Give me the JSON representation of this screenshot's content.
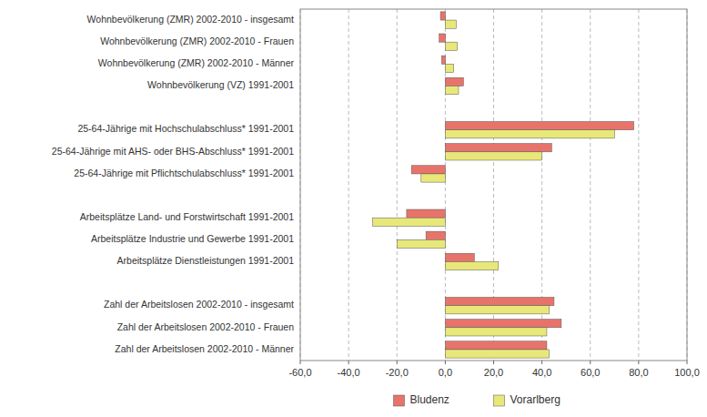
{
  "chart_data": {
    "type": "bar",
    "orientation": "horizontal",
    "categories": [
      "Wohnbevölkerung (ZMR) 2002-2010 - insgesamt",
      "Wohnbevölkerung (ZMR) 2002-2010 - Frauen",
      "Wohnbevölkerung (ZMR) 2002-2010 - Männer",
      "Wohnbevölkerung (VZ) 1991-2001",
      null,
      "25-64-Jährige mit Hochschulabschluss* 1991-2001",
      "25-64-Jährige mit AHS- oder BHS-Abschluss* 1991-2001",
      "25-64-Jährige mit Pflichtschulabschluss* 1991-2001",
      null,
      "Arbeitsplätze Land- und Forstwirtschaft 1991-2001",
      "Arbeitsplätze Industrie und Gewerbe 1991-2001",
      "Arbeitsplätze Dienstleistungen 1991-2001",
      null,
      "Zahl der Arbeitslosen 2002-2010 - insgesamt",
      "Zahl der Arbeitslosen 2002-2010 - Frauen",
      "Zahl der Arbeitslosen 2002-2010 - Männer"
    ],
    "series": [
      {
        "name": "Bludenz",
        "color": "#E8736B",
        "values": [
          -2.0,
          -2.5,
          -1.5,
          7.5,
          null,
          78.0,
          44.0,
          -14.0,
          null,
          -16.0,
          -8.0,
          12.0,
          null,
          45.0,
          48.0,
          42.0
        ]
      },
      {
        "name": "Vorarlberg",
        "color": "#E8E87A",
        "values": [
          4.5,
          5.0,
          3.5,
          5.5,
          null,
          70.0,
          40.0,
          -10.0,
          null,
          -30.0,
          -20.0,
          22.0,
          null,
          43.0,
          42.0,
          43.0
        ]
      }
    ],
    "xlim": [
      -60,
      100
    ],
    "xticks": [
      {
        "value": -60,
        "label": "-60,0"
      },
      {
        "value": -40,
        "label": "-40,0"
      },
      {
        "value": -20,
        "label": "-20,0"
      },
      {
        "value": 0,
        "label": "0,0"
      },
      {
        "value": 20,
        "label": "20,0"
      },
      {
        "value": 40,
        "label": "40,0"
      },
      {
        "value": 60,
        "label": "60,0"
      },
      {
        "value": 80,
        "label": "80,0"
      },
      {
        "value": 100,
        "label": "100,0"
      }
    ],
    "grid": true,
    "legend": "bottom"
  }
}
